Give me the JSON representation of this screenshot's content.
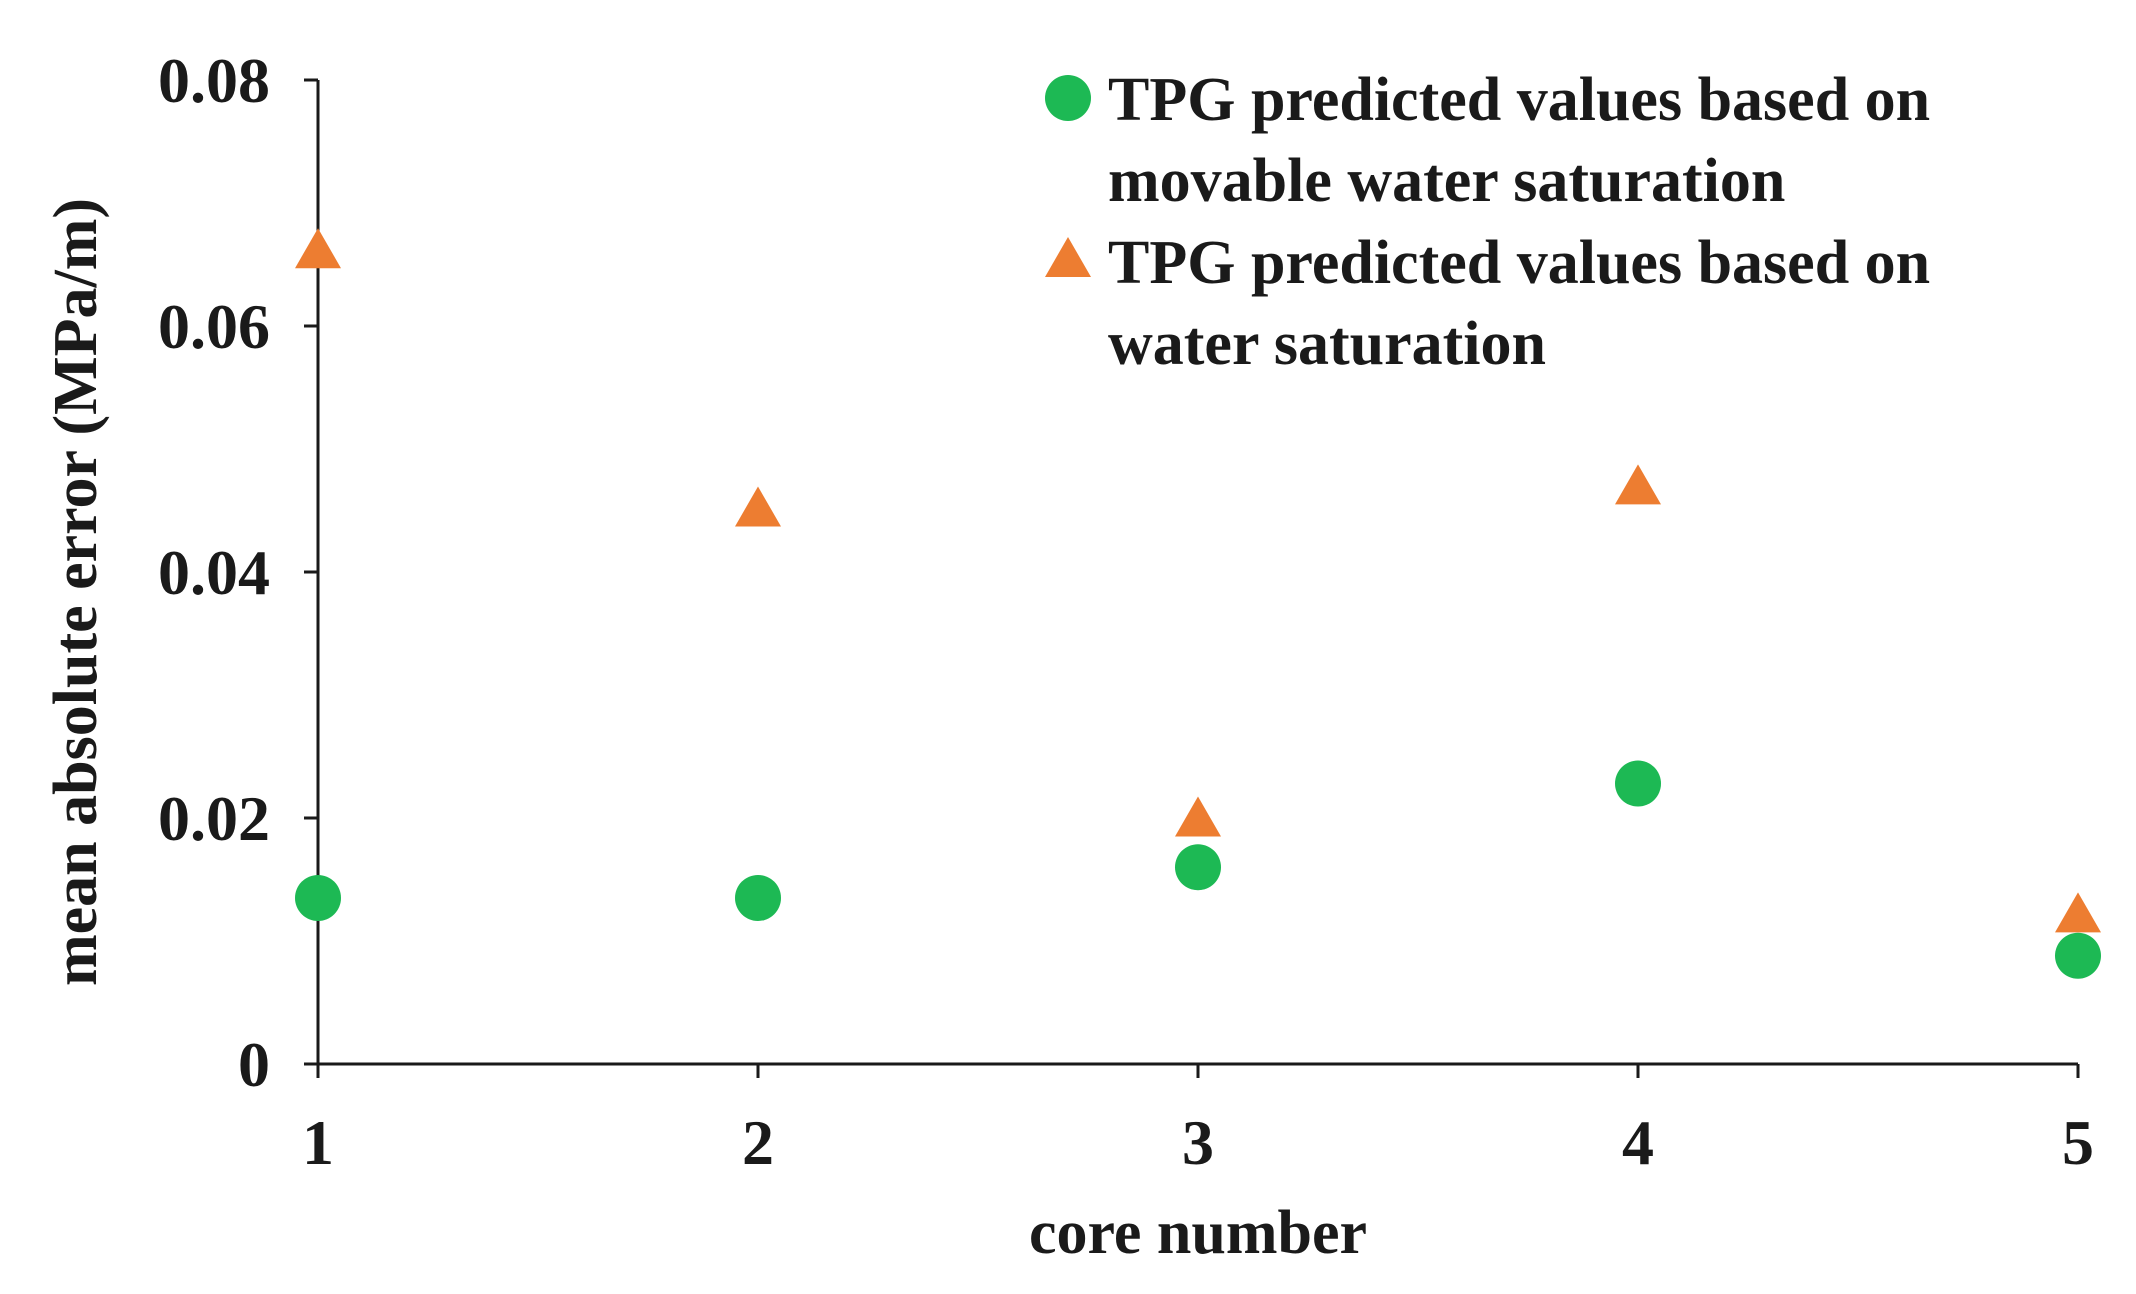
{
  "chart_data": {
    "type": "scatter",
    "title": "",
    "xlabel": "core number",
    "ylabel": "mean absolute error (MPa/m)",
    "x": [
      1,
      2,
      3,
      4,
      5
    ],
    "xlim": [
      1,
      5
    ],
    "ylim": [
      0,
      0.08
    ],
    "xticks": [
      "1",
      "2",
      "3",
      "4",
      "5"
    ],
    "yticks": [
      "0",
      "0.02",
      "0.04",
      "0.06",
      "0.08"
    ],
    "grid": false,
    "legend_position": "top-right",
    "series": [
      {
        "name": "TPG predicted values based on movable water saturation",
        "legend_lines": [
          "TPG predicted values based on",
          "movable water saturation"
        ],
        "marker": "circle",
        "color": "#1db954",
        "values": [
          0.0135,
          0.0135,
          0.016,
          0.0228,
          0.0088
        ]
      },
      {
        "name": "TPG predicted values based on water saturation",
        "legend_lines": [
          "TPG predicted values based on",
          "water saturation"
        ],
        "marker": "triangle",
        "color": "#ed7d31",
        "values": [
          0.066,
          0.045,
          0.0198,
          0.0468,
          0.012
        ]
      }
    ]
  }
}
